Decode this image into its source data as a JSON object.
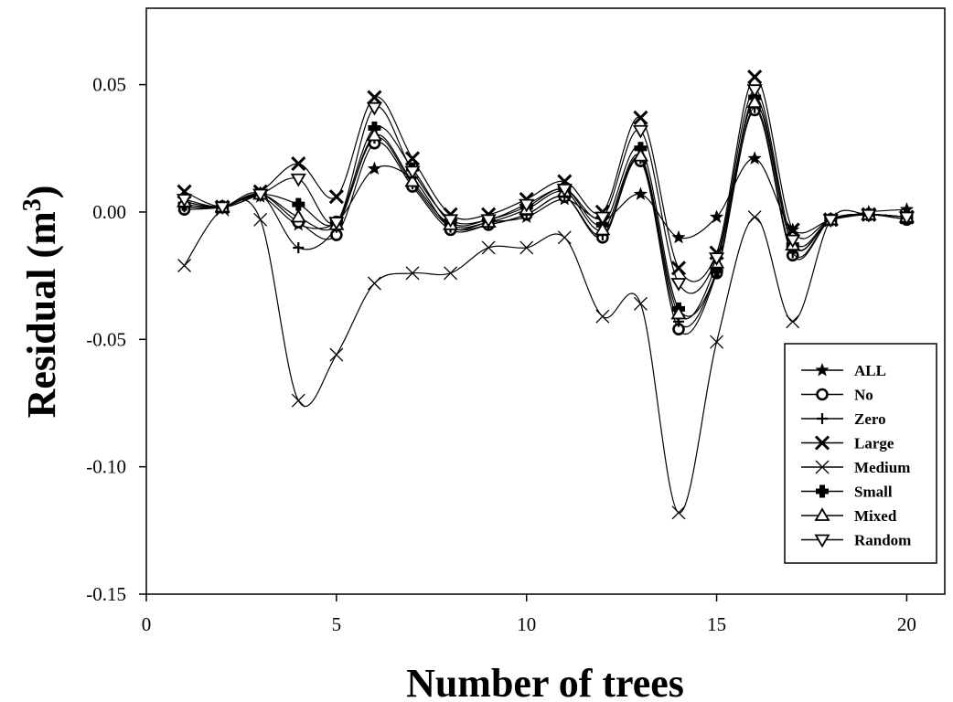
{
  "chart_data": {
    "type": "line",
    "xlabel": "Number of trees",
    "ylabel_main": "Residual (m",
    "ylabel_sup": "3",
    "ylabel_close": ")",
    "xlim": [
      0,
      21
    ],
    "ylim": [
      -0.15,
      0.08
    ],
    "x_ticks": [
      0,
      5,
      10,
      15,
      20
    ],
    "x_tick_labels": [
      "0",
      "5",
      "10",
      "15",
      "20"
    ],
    "y_ticks": [
      0.05,
      0.0,
      -0.05,
      -0.1,
      -0.15
    ],
    "y_tick_labels": [
      "0.05",
      "0.00",
      "-0.05",
      "-0.10",
      "-0.15"
    ],
    "grid": false,
    "legend_position": "bottom-right",
    "x": [
      1,
      2,
      3,
      4,
      5,
      6,
      7,
      8,
      9,
      10,
      11,
      12,
      13,
      14,
      15,
      16,
      17,
      18,
      19,
      20
    ],
    "series": [
      {
        "name": "ALL",
        "marker": "star",
        "values": [
          0.002,
          0.002,
          0.006,
          -0.005,
          -0.004,
          0.017,
          0.013,
          -0.006,
          -0.004,
          -0.002,
          0.005,
          -0.003,
          0.007,
          -0.01,
          -0.002,
          0.021,
          -0.007,
          -0.003,
          0.0,
          0.001
        ]
      },
      {
        "name": "No",
        "marker": "circle",
        "values": [
          0.001,
          0.002,
          0.007,
          -0.004,
          -0.009,
          0.027,
          0.01,
          -0.007,
          -0.005,
          -0.001,
          0.006,
          -0.01,
          0.02,
          -0.046,
          -0.024,
          0.04,
          -0.017,
          -0.003,
          -0.001,
          -0.003
        ]
      },
      {
        "name": "Zero",
        "marker": "plus",
        "values": [
          0.002,
          0.002,
          0.007,
          -0.014,
          -0.006,
          0.029,
          0.011,
          -0.006,
          -0.005,
          -0.001,
          0.006,
          -0.009,
          0.021,
          -0.043,
          -0.023,
          0.041,
          -0.016,
          -0.003,
          -0.001,
          -0.003
        ]
      },
      {
        "name": "Large",
        "marker": "x-bold",
        "values": [
          0.008,
          0.002,
          0.008,
          0.019,
          0.006,
          0.045,
          0.021,
          -0.001,
          -0.001,
          0.005,
          0.012,
          0.0,
          0.037,
          -0.022,
          -0.016,
          0.053,
          -0.007,
          -0.003,
          -0.001,
          -0.002
        ]
      },
      {
        "name": "Medium",
        "marker": "x-thin",
        "values": [
          -0.021,
          0.001,
          -0.003,
          -0.074,
          -0.056,
          -0.028,
          -0.024,
          -0.024,
          -0.014,
          -0.014,
          -0.01,
          -0.041,
          -0.036,
          -0.118,
          -0.051,
          -0.002,
          -0.043,
          -0.003,
          -0.001,
          -0.002
        ]
      },
      {
        "name": "Small",
        "marker": "square-plus",
        "values": [
          0.003,
          0.002,
          0.007,
          0.003,
          -0.004,
          0.033,
          0.017,
          -0.004,
          -0.003,
          0.002,
          0.009,
          -0.005,
          0.025,
          -0.038,
          -0.023,
          0.045,
          -0.013,
          -0.003,
          -0.001,
          -0.002
        ]
      },
      {
        "name": "Mixed",
        "marker": "triangle-up",
        "values": [
          0.004,
          0.002,
          0.007,
          -0.002,
          -0.005,
          0.03,
          0.012,
          -0.005,
          -0.004,
          0.001,
          0.008,
          -0.007,
          0.022,
          -0.04,
          -0.02,
          0.043,
          -0.013,
          -0.003,
          -0.001,
          -0.002
        ]
      },
      {
        "name": "Random",
        "marker": "triangle-down",
        "values": [
          0.005,
          0.002,
          0.007,
          0.013,
          -0.004,
          0.041,
          0.016,
          -0.003,
          -0.003,
          0.003,
          0.009,
          -0.002,
          0.032,
          -0.028,
          -0.018,
          0.048,
          -0.011,
          -0.003,
          -0.001,
          -0.002
        ]
      }
    ]
  }
}
